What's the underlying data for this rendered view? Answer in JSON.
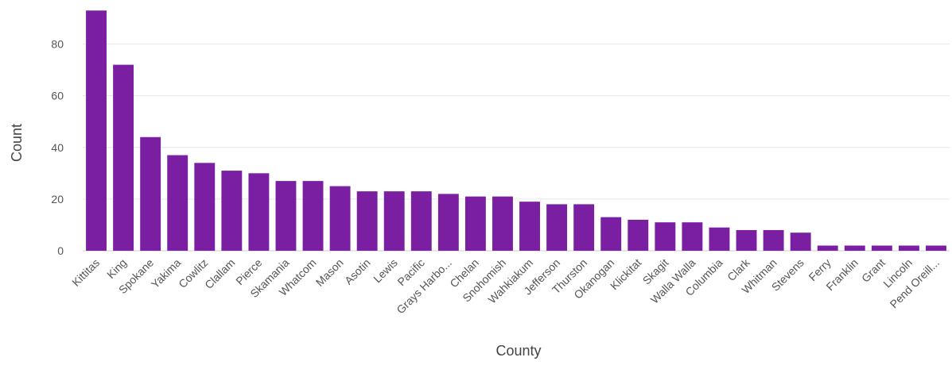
{
  "chart_data": {
    "type": "bar",
    "xlabel": "County",
    "ylabel": "Count",
    "bar_color": "#7b1fa2",
    "ylim": [
      0,
      94
    ],
    "yticks": [
      0,
      20,
      40,
      60,
      80
    ],
    "grid": true,
    "categories": [
      "Kittitas",
      "King",
      "Spokane",
      "Yakima",
      "Cowlitz",
      "Clallam",
      "Pierce",
      "Skamania",
      "Whatcom",
      "Mason",
      "Asotin",
      "Lewis",
      "Pacific",
      "Grays Harbo...",
      "Chelan",
      "Snohomish",
      "Wahkiakum",
      "Jefferson",
      "Thurston",
      "Okanogan",
      "Klickitat",
      "Skagit",
      "Walla Walla",
      "Columbia",
      "Clark",
      "Whitman",
      "Stevens",
      "Ferry",
      "Franklin",
      "Grant",
      "Lincoln",
      "Pend Oreill..."
    ],
    "values": [
      93,
      72,
      44,
      37,
      34,
      31,
      30,
      27,
      27,
      25,
      23,
      23,
      23,
      22,
      21,
      21,
      19,
      18,
      18,
      13,
      12,
      11,
      11,
      9,
      8,
      8,
      7,
      2,
      2,
      2,
      2,
      2
    ]
  }
}
